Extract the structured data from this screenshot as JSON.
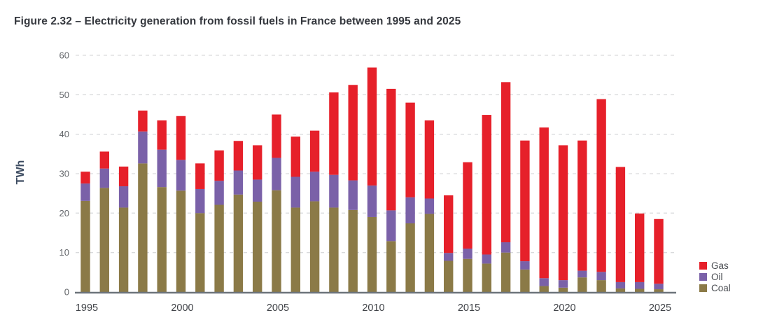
{
  "title": "Figure 2.32 – Electricity generation from fossil fuels in France between 1995 and 2025",
  "chart_data": {
    "type": "bar",
    "stacked": true,
    "title": "Figure 2.32 – Electricity generation from fossil fuels in France between 1995 and 2025",
    "ylabel": "TWh",
    "xlabel": "",
    "ylim": [
      0,
      60
    ],
    "yticks": [
      0,
      10,
      20,
      30,
      40,
      50,
      60
    ],
    "xticks": [
      1995,
      2000,
      2005,
      2010,
      2015,
      2020,
      2025
    ],
    "grid": "horizontal-dashed",
    "legend_position": "right",
    "legend_order": [
      "Gas",
      "Oil",
      "Coal"
    ],
    "x": [
      1995,
      1996,
      1997,
      1998,
      1999,
      2000,
      2001,
      2002,
      2003,
      2004,
      2005,
      2006,
      2007,
      2008,
      2009,
      2010,
      2011,
      2012,
      2013,
      2014,
      2015,
      2016,
      2017,
      2018,
      2019,
      2020,
      2021,
      2022,
      2023,
      2024,
      2025
    ],
    "series": [
      {
        "name": "Coal",
        "color": "#8b7a47",
        "values": [
          23.1,
          26.4,
          21.4,
          32.6,
          26.6,
          25.7,
          20.0,
          22.1,
          24.7,
          22.9,
          25.8,
          21.4,
          23.0,
          21.4,
          20.8,
          19.0,
          12.9,
          17.4,
          19.8,
          7.9,
          8.4,
          7.2,
          10.0,
          5.7,
          1.5,
          1.1,
          3.7,
          3.0,
          0.9,
          0.8,
          0.7
        ]
      },
      {
        "name": "Oil",
        "color": "#7a61a8",
        "values": [
          4.4,
          4.9,
          5.4,
          8.1,
          9.5,
          7.8,
          6.1,
          6.1,
          6.1,
          5.6,
          8.2,
          7.8,
          7.5,
          8.3,
          7.5,
          8.0,
          7.8,
          6.6,
          3.9,
          2.0,
          2.6,
          2.3,
          2.6,
          2.1,
          2.0,
          1.9,
          1.7,
          2.1,
          1.6,
          1.7,
          1.4
        ]
      },
      {
        "name": "Gas",
        "color": "#e6202a",
        "values": [
          3.0,
          4.3,
          5.0,
          5.3,
          7.4,
          11.1,
          6.5,
          7.7,
          7.5,
          8.7,
          11.0,
          10.2,
          10.4,
          20.9,
          24.2,
          29.9,
          30.8,
          24.0,
          19.8,
          14.6,
          21.9,
          35.4,
          40.6,
          30.6,
          38.2,
          34.2,
          33.0,
          43.8,
          29.2,
          17.4,
          16.4
        ]
      }
    ]
  },
  "colors": {
    "gas": "#e6202a",
    "oil": "#7a61a8",
    "coal": "#8b7a47",
    "title_text": "#35383e",
    "axis_label": "#3e4d62",
    "tick_text": "#63666a",
    "x_tick_text": "#404348",
    "gridline": "#d9dadc",
    "axis_line": "#6d747b",
    "background": "#ffffff"
  }
}
